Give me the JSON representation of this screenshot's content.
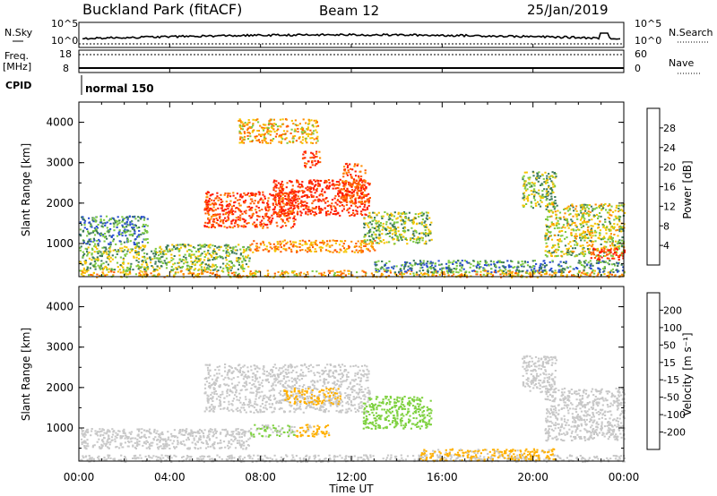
{
  "header": {
    "station": "Buckland Park (fitACF)",
    "beam": "Beam 12",
    "date": "25/Jan/2019"
  },
  "noise_panel": {
    "left_label": "N.Sky",
    "right_label": "N.Search",
    "ticks_left": [
      "10^5",
      "10^0"
    ],
    "ticks_right": [
      "10^5",
      "10^0"
    ]
  },
  "freq_panel": {
    "left_label_1": "Freq.",
    "left_label_2": "[MHz]",
    "right_label": "Nave",
    "ticks_left": [
      "18",
      "8"
    ],
    "ticks_right": [
      "60",
      "0"
    ]
  },
  "cpid": {
    "label": "CPID",
    "mode": "normal 150"
  },
  "colors": {
    "power_scale": [
      "#0018ff",
      "#2a4fd0",
      "#3c7a5a",
      "#7dc943",
      "#f5c400",
      "#ff8c00",
      "#ff5a00",
      "#ff1a00"
    ],
    "velocity_scale": [
      "#ff0000",
      "#ff4d00",
      "#ff8c00",
      "#ffb000",
      "#c8c8c8",
      "#7fd140",
      "#3da34a",
      "#1f6b45",
      "#2a2ad2"
    ]
  },
  "chart_data": [
    {
      "type": "heatmap",
      "name": "power",
      "xlabel": "",
      "ylabel": "Slant Range [km]",
      "y_ticks": [
        "1000",
        "2000",
        "3000",
        "4000"
      ],
      "ylim": [
        180,
        4500
      ],
      "x_range_hours": [
        0,
        24
      ],
      "colorbar": {
        "label": "Power [dB]",
        "ticks": [
          "4",
          "8",
          "12",
          "16",
          "20",
          "24",
          "28"
        ],
        "range": [
          0,
          32
        ]
      },
      "regions": [
        {
          "t": [
            0.0,
            24.0
          ],
          "r": [
            180,
            350
          ],
          "v": 20
        },
        {
          "t": [
            0.0,
            7.5
          ],
          "r": [
            350,
            1000
          ],
          "v": 14
        },
        {
          "t": [
            0.0,
            3.0
          ],
          "r": [
            1000,
            1700
          ],
          "v": 10
        },
        {
          "t": [
            5.5,
            9.5
          ],
          "r": [
            1400,
            2300
          ],
          "v": 28
        },
        {
          "t": [
            8.5,
            12.8
          ],
          "r": [
            1700,
            2600
          ],
          "v": 30
        },
        {
          "t": [
            11.5,
            12.6
          ],
          "r": [
            2000,
            3000
          ],
          "v": 26
        },
        {
          "t": [
            7.5,
            13.0
          ],
          "r": [
            800,
            1100
          ],
          "v": 22
        },
        {
          "t": [
            9.8,
            10.6
          ],
          "r": [
            2900,
            3300
          ],
          "v": 28
        },
        {
          "t": [
            7.0,
            10.5
          ],
          "r": [
            3500,
            4100
          ],
          "v": 20
        },
        {
          "t": [
            12.5,
            15.5
          ],
          "r": [
            1000,
            1800
          ],
          "v": 14
        },
        {
          "t": [
            13.0,
            24.0
          ],
          "r": [
            300,
            600
          ],
          "v": 10
        },
        {
          "t": [
            19.5,
            21.0
          ],
          "r": [
            1900,
            2800
          ],
          "v": 14
        },
        {
          "t": [
            20.5,
            24.0
          ],
          "r": [
            700,
            2000
          ],
          "v": 16
        },
        {
          "t": [
            22.5,
            24.0
          ],
          "r": [
            600,
            900
          ],
          "v": 30
        }
      ]
    },
    {
      "type": "heatmap",
      "name": "velocity",
      "xlabel": "Time UT",
      "ylabel": "Slant Range [km]",
      "x_ticks": [
        "00:00",
        "04:00",
        "08:00",
        "12:00",
        "16:00",
        "20:00",
        "00:00"
      ],
      "y_ticks": [
        "1000",
        "2000",
        "3000",
        "4000"
      ],
      "ylim": [
        180,
        4500
      ],
      "x_range_hours": [
        0,
        24
      ],
      "colorbar": {
        "label": "Velocity [m s⁻¹]",
        "ticks": [
          "-200",
          "-100",
          "-50",
          "-15",
          "15",
          "50",
          "100",
          "200"
        ],
        "range": [
          -250,
          250
        ]
      },
      "regions": [
        {
          "t": [
            0.0,
            24.0
          ],
          "r": [
            180,
            350
          ],
          "v": -5
        },
        {
          "t": [
            0.0,
            7.5
          ],
          "r": [
            500,
            1000
          ],
          "v": 0
        },
        {
          "t": [
            5.5,
            12.8
          ],
          "r": [
            1400,
            2600
          ],
          "v": 0
        },
        {
          "t": [
            9.0,
            11.5
          ],
          "r": [
            1600,
            2000
          ],
          "v": -40
        },
        {
          "t": [
            9.5,
            11.0
          ],
          "r": [
            800,
            1100
          ],
          "v": -40
        },
        {
          "t": [
            7.5,
            9.5
          ],
          "r": [
            800,
            1100
          ],
          "v": 30
        },
        {
          "t": [
            12.5,
            15.5
          ],
          "r": [
            1000,
            1800
          ],
          "v": 60
        },
        {
          "t": [
            15.0,
            21.0
          ],
          "r": [
            200,
            500
          ],
          "v": -40
        },
        {
          "t": [
            19.5,
            21.0
          ],
          "r": [
            1900,
            2800
          ],
          "v": 0
        },
        {
          "t": [
            20.5,
            24.0
          ],
          "r": [
            700,
            2000
          ],
          "v": 0
        }
      ]
    }
  ]
}
